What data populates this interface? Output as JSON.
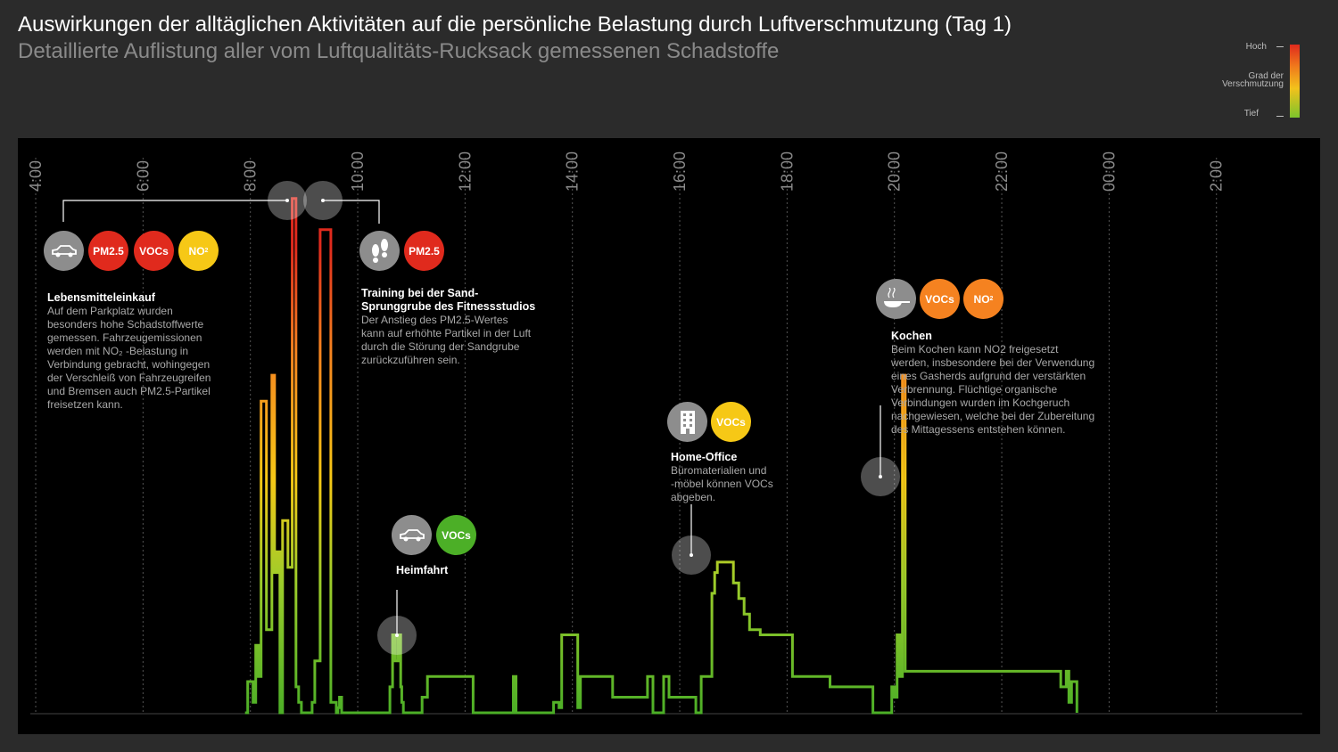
{
  "header": {
    "title": "Auswirkungen der alltäglichen Aktivitäten auf die persönliche Belastung durch Luftverschmutzung (Tag 1)",
    "subtitle": "Detaillierte Auflistung aller vom Luftqualitäts-Rucksack gemessenen Schadstoffe"
  },
  "legend": {
    "high": "Hoch",
    "mid_1": "Grad der",
    "mid_2": "Verschmutzung",
    "low": "Tief"
  },
  "colors": {
    "background": "#2b2b2b",
    "panel": "#000000",
    "red": "#e02a1d",
    "orange": "#f58220",
    "yellow": "#f6c816",
    "green": "#4caf27",
    "gray": "#8d8d8d"
  },
  "badges": {
    "pm25": "PM2.5",
    "vocs": "VOCs",
    "no2_main": "NO",
    "no2_sub": "2"
  },
  "activities": {
    "shopping": {
      "title": "Lebensmitteleinkauf",
      "icon": "car-icon",
      "lines": [
        "Auf dem Parkplatz wurden",
        "besonders hohe Schadstoffwerte",
        "gemessen. Fahrzeugemissionen",
        "werden mit NO₂ -Belastung in",
        "Verbindung gebracht, wohingegen",
        "der Verschleiß von Fahrzeugreifen",
        "und Bremsen auch PM2.5-Partikel",
        "freisetzen kann."
      ]
    },
    "training": {
      "title_1": "Training bei der Sand-",
      "title_2": "Sprunggrube des Fitnessstudios",
      "icon": "footprints-icon",
      "lines": [
        "Der Anstieg des PM2.5-Wertes",
        "kann auf erhöhte Partikel in der Luft",
        "durch die Störung der Sandgrube",
        "zurückzuführen sein."
      ]
    },
    "commute": {
      "title": "Heimfahrt",
      "icon": "car-icon"
    },
    "office": {
      "title": "Home-Office",
      "icon": "building-icon",
      "lines": [
        "Büromaterialien und",
        "-möbel können VOCs",
        "abgeben."
      ]
    },
    "cooking": {
      "title": "Kochen",
      "icon": "pan-icon",
      "lines": [
        "Beim Kochen kann NO2 freigesetzt",
        "werden, insbesondere bei der Verwendung",
        "eines Gasherds aufgrund der verstärkten",
        "Verbrennung. Flüchtige organische",
        "Verbindungen wurden im Kochgeruch",
        "nachgewiesen, welche bei der Zubereitung",
        "des Mittagessens entstehen können."
      ]
    }
  },
  "chart_data": {
    "type": "line",
    "title": "Auswirkungen der alltäglichen Aktivitäten auf die persönliche Belastung durch Luftverschmutzung (Tag 1)",
    "xlabel": "",
    "ylabel": "Grad der Verschmutzung",
    "x_tick_labels": [
      "4:00",
      "6:00",
      "8:00",
      "10:00",
      "12:00",
      "14:00",
      "16:00",
      "18:00",
      "20:00",
      "22:00",
      "00:00",
      "2:00"
    ],
    "x_tick_hours": [
      4,
      6,
      8,
      10,
      12,
      14,
      16,
      18,
      20,
      22,
      24,
      26
    ],
    "xlim": [
      3.9,
      27.6
    ],
    "ylim": [
      0,
      100
    ],
    "series": [
      {
        "name": "Verschmutzung",
        "hours": [
          7.9,
          7.95,
          8.05,
          8.1,
          8.15,
          8.2,
          8.3,
          8.4,
          8.45,
          8.5,
          8.55,
          8.6,
          8.7,
          8.78,
          8.85,
          8.9,
          8.95,
          9.0,
          9.1,
          9.15,
          9.2,
          9.3,
          9.5,
          9.5,
          9.6,
          9.63,
          9.66,
          9.7,
          9.8,
          10.6,
          10.6,
          10.65,
          10.7,
          10.75,
          10.8,
          10.82,
          10.85,
          11.2,
          11.3,
          12.1,
          12.15,
          12.9,
          12.95,
          13.6,
          13.65,
          13.75,
          13.8,
          14.1,
          14.15,
          14.7,
          14.75,
          15.4,
          15.5,
          15.7,
          15.8,
          16.3,
          16.4,
          16.5,
          16.6,
          16.65,
          16.7,
          16.75,
          16.8,
          17.0,
          17.1,
          17.2,
          17.3,
          17.5,
          17.6,
          17.75,
          18.1,
          18.8,
          19.6,
          19.95,
          20.0,
          20.05,
          20.1,
          20.15,
          20.2,
          21.5,
          22.3,
          22.8,
          23.1,
          23.2,
          23.25,
          23.3,
          23.4
        ],
        "values": [
          0,
          6,
          2,
          13,
          7,
          60,
          16,
          65,
          27,
          31,
          0,
          37,
          28,
          99,
          5,
          2,
          0,
          0,
          0,
          2,
          10,
          93,
          10,
          2,
          0,
          1,
          3,
          0,
          0,
          0,
          5,
          15,
          10,
          15,
          5,
          2,
          0,
          3,
          7,
          7,
          0,
          7,
          0,
          0,
          2,
          1,
          15,
          1,
          7,
          7,
          3,
          7,
          0,
          7,
          3,
          0,
          7,
          7,
          23,
          27,
          29,
          29,
          29,
          25,
          22,
          19,
          16,
          15,
          15,
          15,
          7,
          5,
          0,
          5,
          3,
          15,
          7,
          65,
          8,
          8,
          8,
          8,
          5,
          8,
          2,
          6,
          0
        ]
      }
    ]
  }
}
